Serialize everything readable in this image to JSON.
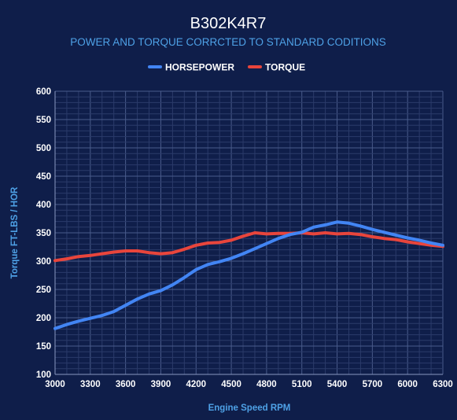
{
  "colors": {
    "background": "#0f1e4a",
    "subtitle": "#4ea1e6",
    "axis_label": "#4ea1e6",
    "grid_major": "#4a5c8c",
    "grid_minor": "#2b3b6a",
    "horsepower": "#4285f4",
    "torque": "#e8453c"
  },
  "chart_data": {
    "type": "line",
    "title": "B302K4R7",
    "subtitle": "POWER AND TORQUE CORRCTED TO STANDARD CODITIONS",
    "xlabel": "Engine Speed RPM",
    "ylabel": "Torque FT-LBS / HOR",
    "xlim": [
      3000,
      6300
    ],
    "ylim": [
      100,
      600
    ],
    "x_ticks": [
      "3000",
      "3300",
      "3600",
      "3900",
      "4200",
      "4500",
      "4800",
      "5100",
      "5400",
      "5700",
      "6000",
      "6300"
    ],
    "y_ticks": [
      "100",
      "150",
      "200",
      "250",
      "300",
      "350",
      "400",
      "450",
      "500",
      "550",
      "600"
    ],
    "grid": true,
    "legend_position": "top",
    "series": [
      {
        "name": "HORSEPOWER",
        "color": "#4285f4",
        "x": [
          3000,
          3100,
          3200,
          3300,
          3400,
          3500,
          3600,
          3700,
          3800,
          3900,
          4000,
          4100,
          4200,
          4300,
          4400,
          4500,
          4600,
          4700,
          4800,
          4900,
          5000,
          5100,
          5200,
          5300,
          5400,
          5500,
          5600,
          5700,
          5800,
          5900,
          6000,
          6100,
          6200,
          6300
        ],
        "y": [
          181,
          188,
          194,
          199,
          204,
          211,
          222,
          233,
          242,
          248,
          258,
          271,
          285,
          294,
          299,
          305,
          313,
          322,
          331,
          340,
          347,
          351,
          360,
          364,
          369,
          367,
          362,
          356,
          351,
          346,
          341,
          337,
          332,
          328
        ]
      },
      {
        "name": "TORQUE",
        "color": "#e8453c",
        "x": [
          3000,
          3100,
          3200,
          3300,
          3400,
          3500,
          3600,
          3700,
          3800,
          3900,
          4000,
          4100,
          4200,
          4300,
          4400,
          4500,
          4600,
          4700,
          4800,
          4900,
          5000,
          5100,
          5200,
          5300,
          5400,
          5500,
          5600,
          5700,
          5800,
          5900,
          6000,
          6100,
          6200,
          6300
        ],
        "y": [
          301,
          304,
          308,
          310,
          313,
          316,
          318,
          318,
          315,
          313,
          315,
          321,
          328,
          332,
          333,
          337,
          344,
          350,
          348,
          349,
          349,
          350,
          348,
          350,
          348,
          349,
          347,
          343,
          340,
          338,
          334,
          331,
          328,
          326
        ]
      }
    ]
  }
}
